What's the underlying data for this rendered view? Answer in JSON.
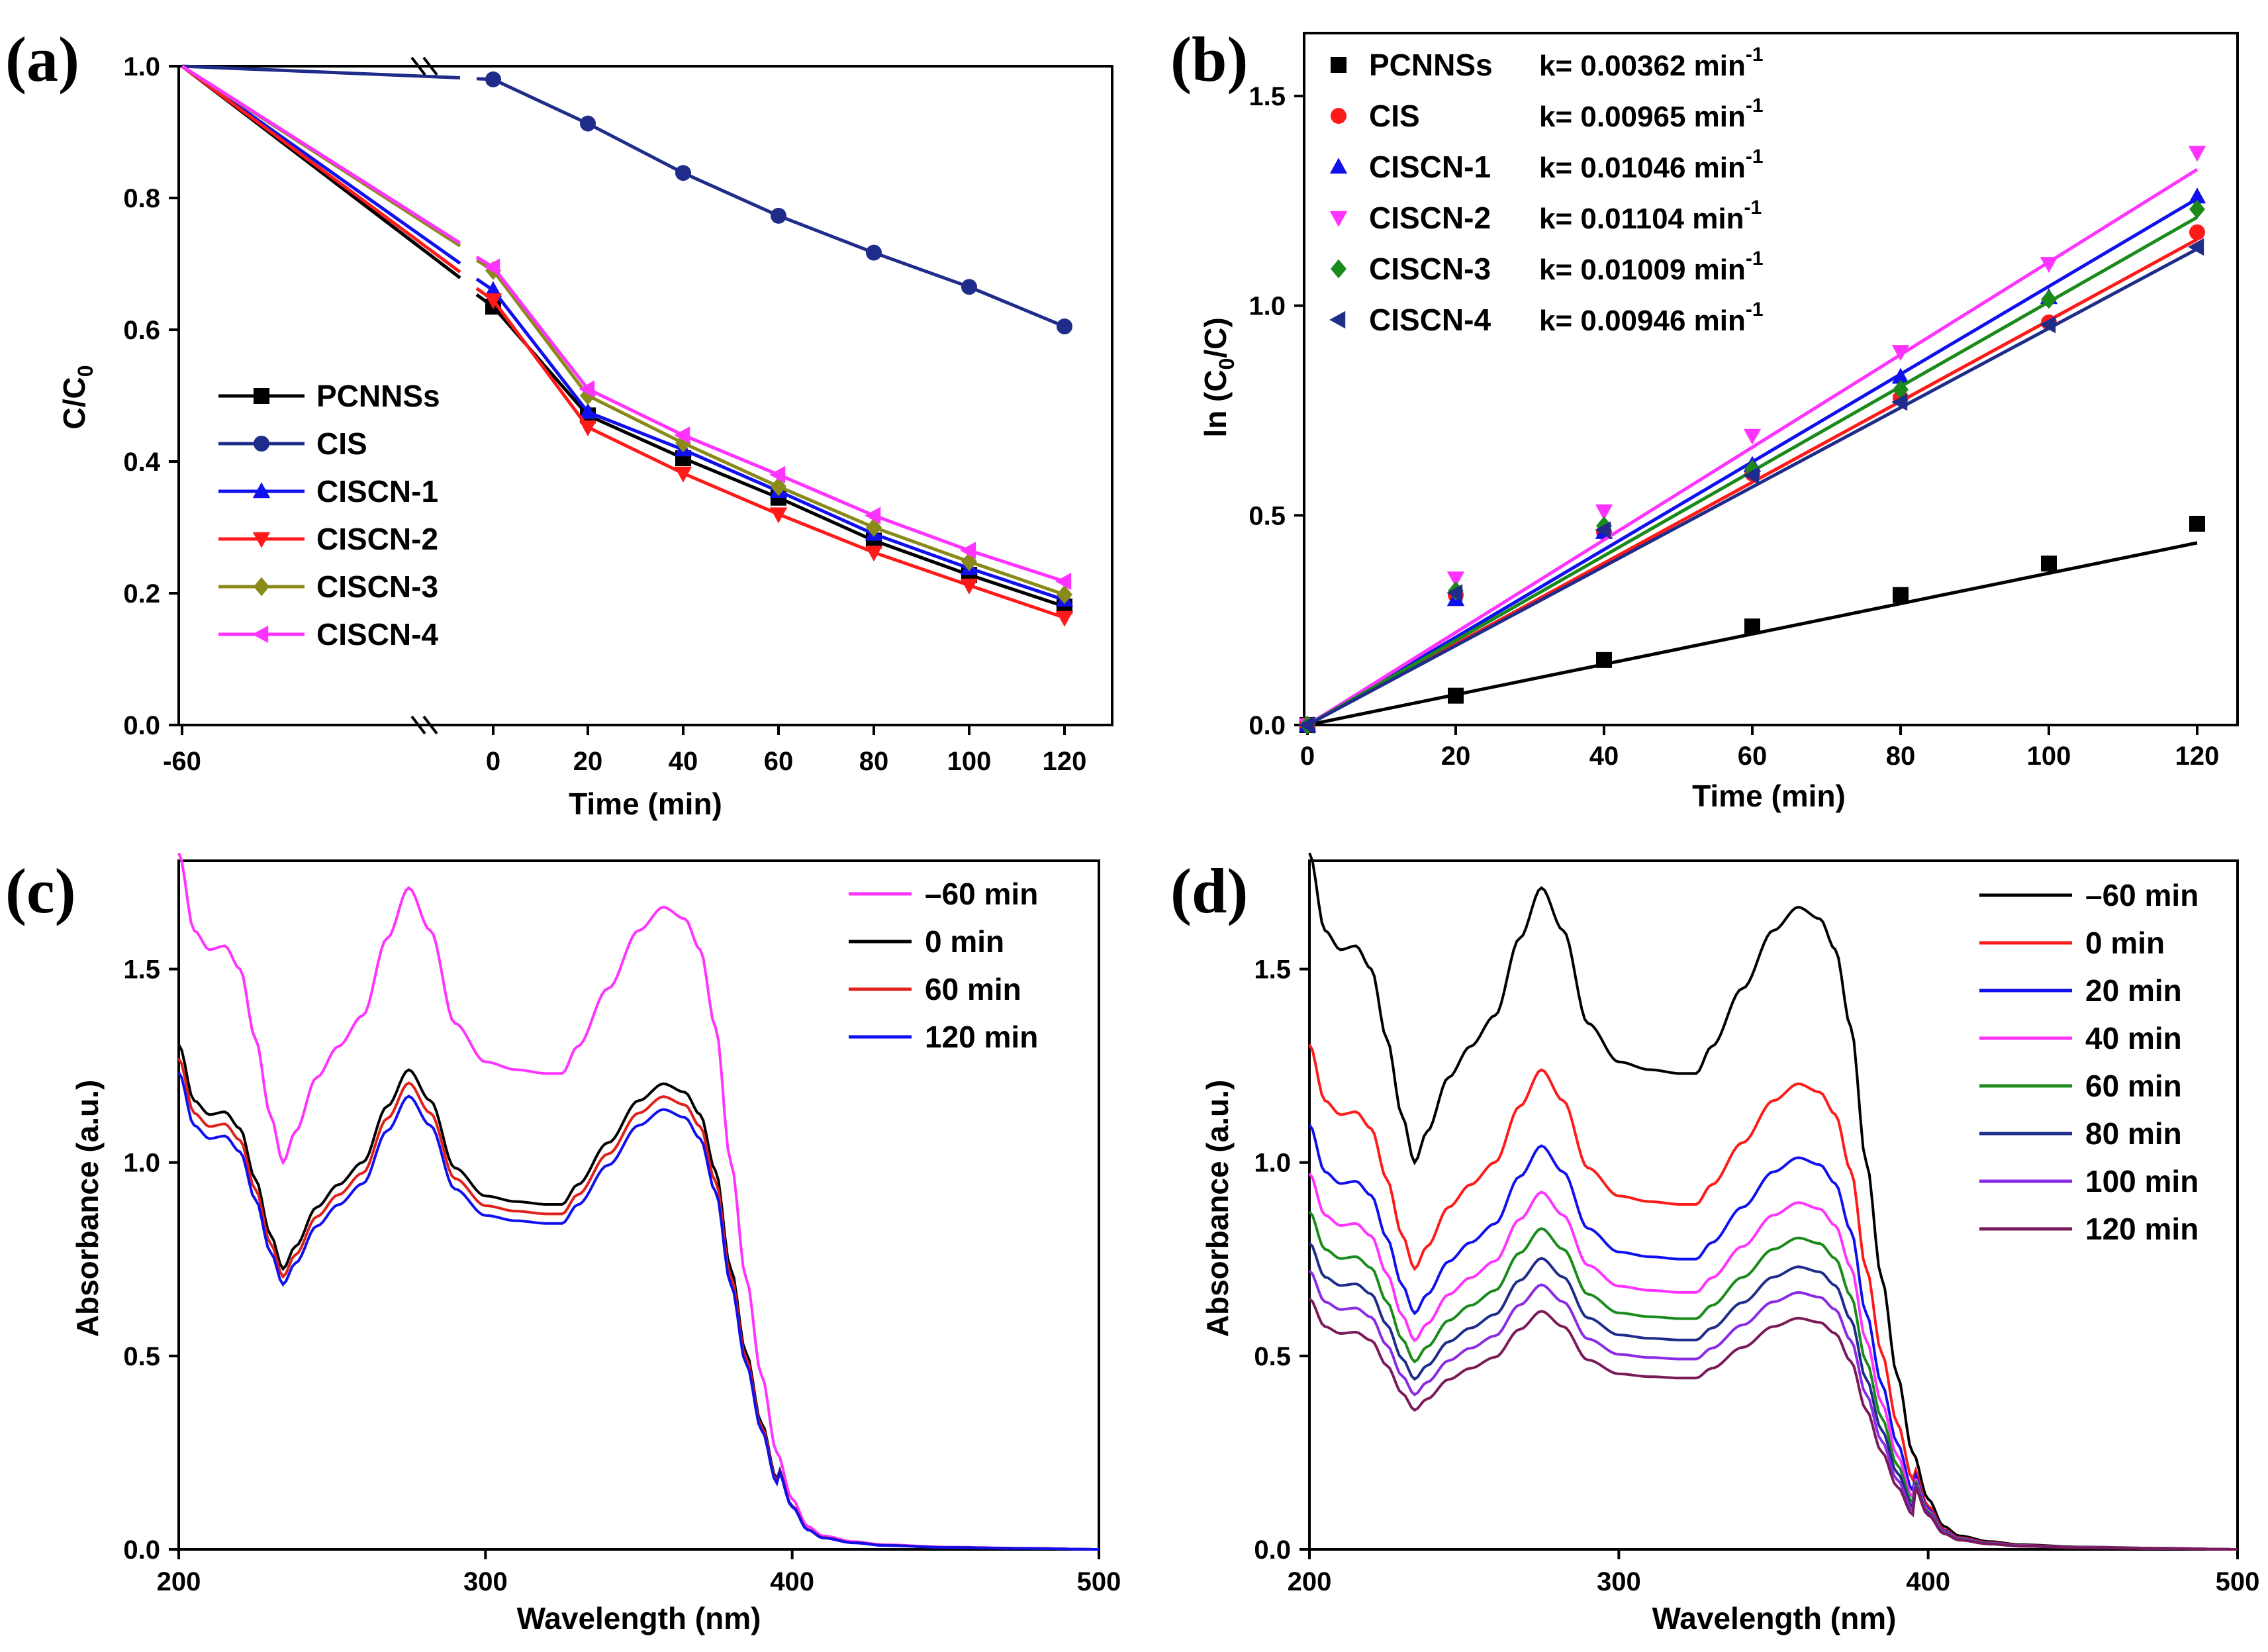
{
  "chart_data": [
    {
      "panel": "(a)",
      "type": "line",
      "xlabel": "Time (min)",
      "ylabel_main": "C/C",
      "ylabel_sub": "0",
      "x": [
        -60,
        0,
        20,
        40,
        60,
        80,
        100,
        120
      ],
      "x_tick_labels": [
        "-60",
        "0",
        "20",
        "40",
        "60",
        "80",
        "100",
        "120"
      ],
      "y_tick_labels": [
        "0.0",
        "0.2",
        "0.4",
        "0.6",
        "0.8",
        "1.0"
      ],
      "ylim": [
        0,
        1.0
      ],
      "axis_break": "between -60 and 0",
      "legend_position": "bottom-left",
      "series": [
        {
          "name": "PCNNSs",
          "color": "#000000",
          "marker": "square",
          "values": [
            1.0,
            0.635,
            0.47,
            0.405,
            0.345,
            0.28,
            0.228,
            0.18
          ]
        },
        {
          "name": "CIS",
          "color": "#1f2c8a",
          "marker": "circle",
          "values": [
            1.0,
            0.98,
            0.913,
            0.838,
            0.773,
            0.717,
            0.665,
            0.605
          ]
        },
        {
          "name": "CISCN-1",
          "color": "#1010ee",
          "marker": "triangle-up",
          "values": [
            1.0,
            0.66,
            0.475,
            0.418,
            0.355,
            0.29,
            0.238,
            0.19
          ]
        },
        {
          "name": "CISCN-2",
          "color": "#ff1a1a",
          "marker": "triangle-down",
          "values": [
            1.0,
            0.645,
            0.452,
            0.382,
            0.32,
            0.262,
            0.212,
            0.163
          ]
        },
        {
          "name": "CISCN-3",
          "color": "#8a8a1a",
          "marker": "diamond",
          "values": [
            1.0,
            0.69,
            0.5,
            0.428,
            0.362,
            0.3,
            0.248,
            0.198
          ]
        },
        {
          "name": "CISCN-4",
          "color": "#ff33ff",
          "marker": "triangle-left",
          "values": [
            1.0,
            0.695,
            0.51,
            0.44,
            0.38,
            0.318,
            0.265,
            0.218
          ]
        }
      ]
    },
    {
      "panel": "(b)",
      "type": "scatter",
      "xlabel": "Time (min)",
      "ylabel_pre": "ln (C",
      "ylabel_sub": "0",
      "ylabel_post": "/C)",
      "x": [
        0,
        20,
        40,
        60,
        80,
        100,
        120
      ],
      "x_tick_labels": [
        "0",
        "20",
        "40",
        "60",
        "80",
        "100",
        "120"
      ],
      "y_tick_labels": [
        "0.0",
        "0.5",
        "1.0",
        "1.5"
      ],
      "xlim": [
        0,
        122
      ],
      "ylim": [
        0,
        1.65
      ],
      "legend_position": "top-left",
      "k_unit_main": "min",
      "k_unit_sup": "-1",
      "series": [
        {
          "name": "PCNNSs",
          "k_label": "k= 0.00362",
          "k": 0.00362,
          "color": "#000000",
          "marker": "square",
          "values": [
            0,
            0.07,
            0.155,
            0.235,
            0.31,
            0.385,
            0.48
          ]
        },
        {
          "name": "CIS",
          "k_label": "k= 0.00965",
          "k": 0.00965,
          "color": "#ff1a1a",
          "marker": "circle",
          "values": [
            0,
            0.31,
            0.46,
            0.6,
            0.78,
            0.96,
            1.175
          ]
        },
        {
          "name": "CISCN-1",
          "k_label": "k= 0.01046",
          "k": 0.01046,
          "color": "#1010ee",
          "marker": "triangle-up",
          "values": [
            0,
            0.3,
            0.46,
            0.62,
            0.83,
            1.02,
            1.26
          ]
        },
        {
          "name": "CISCN-2",
          "k_label": "k= 0.01104",
          "k": 0.01104,
          "color": "#ff33ff",
          "marker": "triangle-down",
          "values": [
            0,
            0.35,
            0.51,
            0.69,
            0.89,
            1.1,
            1.365
          ]
        },
        {
          "name": "CISCN-3",
          "k_label": "k= 0.01009",
          "k": 0.01009,
          "color": "#1a8a1a",
          "marker": "diamond",
          "values": [
            0,
            0.32,
            0.475,
            0.61,
            0.8,
            1.015,
            1.23
          ]
        },
        {
          "name": "CISCN-4",
          "k_label": "k= 0.00946",
          "k": 0.00946,
          "color": "#1f2c8a",
          "marker": "triangle-left",
          "values": [
            0,
            0.315,
            0.465,
            0.595,
            0.77,
            0.955,
            1.14
          ]
        }
      ]
    },
    {
      "panel": "(c)",
      "type": "line",
      "xlabel": "Wavelength (nm)",
      "ylabel": "Absorbance (a.u.)",
      "xlim": [
        200,
        500
      ],
      "ylim": [
        0,
        1.78
      ],
      "x_tick_labels": [
        "200",
        "300",
        "400",
        "500"
      ],
      "y_tick_labels": [
        "0.0",
        "0.5",
        "1.0",
        "1.5"
      ],
      "legend_position": "top-right",
      "series": [
        {
          "name": "–60 min",
          "color": "#ff33ff",
          "scale": 1.0
        },
        {
          "name": "0 min",
          "color": "#000000",
          "scale": 0.725
        },
        {
          "name": "60 min",
          "color": "#e0201a",
          "scale": 0.705
        },
        {
          "name": "120 min",
          "color": "#1010ee",
          "scale": 0.685
        }
      ]
    },
    {
      "panel": "(d)",
      "type": "line",
      "xlabel": "Wavelength (nm)",
      "ylabel": "Absorbance (a.u.)",
      "xlim": [
        200,
        500
      ],
      "ylim": [
        0,
        1.78
      ],
      "x_tick_labels": [
        "200",
        "300",
        "400",
        "500"
      ],
      "y_tick_labels": [
        "0.0",
        "0.5",
        "1.0",
        "1.5"
      ],
      "legend_position": "top-right",
      "series": [
        {
          "name": "–60 min",
          "color": "#000000",
          "scale": 1.0
        },
        {
          "name": "0 min",
          "color": "#ff1a1a",
          "scale": 0.725
        },
        {
          "name": "20 min",
          "color": "#1010ee",
          "scale": 0.61
        },
        {
          "name": "40 min",
          "color": "#ff33ff",
          "scale": 0.54
        },
        {
          "name": "60 min",
          "color": "#1a8a1a",
          "scale": 0.485
        },
        {
          "name": "80 min",
          "color": "#1f2c8a",
          "scale": 0.44
        },
        {
          "name": "100 min",
          "color": "#8a2be2",
          "scale": 0.4
        },
        {
          "name": "120 min",
          "color": "#7a1a5a",
          "scale": 0.36
        }
      ]
    }
  ],
  "uv_reference_profile": {
    "wavelength": [
      200,
      205,
      210,
      215,
      220,
      225,
      230,
      234,
      238,
      245,
      252,
      260,
      268,
      275,
      282,
      290,
      300,
      310,
      320,
      325,
      330,
      340,
      350,
      358,
      365,
      370,
      375,
      380,
      385,
      390,
      395,
      400,
      405,
      410,
      420,
      430,
      450,
      475,
      500
    ],
    "absorbance": [
      1.8,
      1.6,
      1.55,
      1.56,
      1.5,
      1.32,
      1.12,
      1.0,
      1.08,
      1.22,
      1.3,
      1.38,
      1.58,
      1.71,
      1.6,
      1.36,
      1.26,
      1.24,
      1.23,
      1.23,
      1.3,
      1.45,
      1.6,
      1.66,
      1.63,
      1.55,
      1.35,
      1.0,
      0.7,
      0.45,
      0.25,
      0.13,
      0.06,
      0.035,
      0.02,
      0.012,
      0.006,
      0.003,
      0.0
    ]
  }
}
